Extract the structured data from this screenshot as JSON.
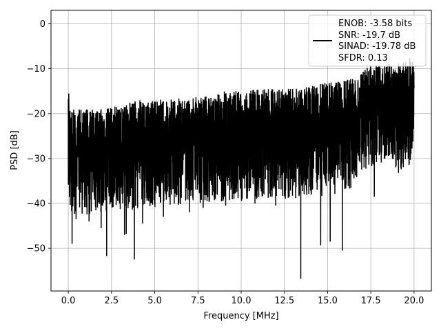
{
  "chart_data": {
    "type": "line",
    "xlabel": "Frequency [MHz]",
    "ylabel": "PSD [dB]",
    "xlim": [
      -1.0,
      21.0
    ],
    "ylim": [
      -59.5,
      3.0
    ],
    "grid": true,
    "legend_position": "upper-right",
    "x_ticks": [
      0.0,
      2.5,
      5.0,
      7.5,
      10.0,
      12.5,
      15.0,
      17.5,
      20.0
    ],
    "x_tick_labels": [
      "0.0",
      "2.5",
      "5.0",
      "7.5",
      "10.0",
      "12.5",
      "15.0",
      "17.5",
      "20.0"
    ],
    "y_ticks": [
      0,
      -10,
      -20,
      -30,
      -40,
      -50
    ],
    "y_tick_labels": [
      "0",
      "−10",
      "−20",
      "−30",
      "−40",
      "−50"
    ],
    "legend_lines": [
      "ENOB: -3.58 bits",
      "SNR: -19.7 dB",
      "SINAD: -19.78 dB",
      "SFDR: 0.13"
    ],
    "series": [
      {
        "color": "#000000",
        "x_range": [
          0.0,
          20.0
        ],
        "points": 8192,
        "envelope": {
          "x": [
            0.0,
            0.05,
            0.1,
            0.5,
            1.0,
            2.0,
            3.0,
            4.0,
            5.0,
            6.0,
            7.0,
            8.0,
            9.0,
            10.0,
            11.0,
            12.0,
            13.0,
            14.0,
            15.0,
            16.0,
            16.8,
            17.0,
            17.5,
            18.0,
            18.5,
            19.0,
            19.5,
            20.0
          ],
          "max": [
            -12.3,
            -17.5,
            -19.0,
            -19.0,
            -19.0,
            -19.0,
            -18.0,
            -17.0,
            -17.0,
            -16.5,
            -16.5,
            -16.0,
            -15.0,
            -15.0,
            -14.5,
            -14.5,
            -14.0,
            -14.0,
            -13.0,
            -12.5,
            -12.0,
            -10.5,
            -9.0,
            -9.0,
            -9.0,
            -9.0,
            -7.5,
            -7.5
          ],
          "mean": [
            -26.0,
            -27.0,
            -28.0,
            -28.5,
            -28.5,
            -28.0,
            -27.5,
            -27.5,
            -27.0,
            -26.5,
            -26.5,
            -26.0,
            -25.5,
            -25.5,
            -25.0,
            -25.0,
            -25.0,
            -24.5,
            -24.5,
            -23.5,
            -21.5,
            -18.5,
            -18.0,
            -18.0,
            -18.0,
            -18.5,
            -18.5,
            -19.0
          ],
          "min": [
            -36.0,
            -36.0,
            -49.0,
            -43.0,
            -45.0,
            -51.7,
            -47.0,
            -52.5,
            -44.0,
            -43.0,
            -42.0,
            -41.0,
            -41.0,
            -40.0,
            -40.0,
            -39.0,
            -56.8,
            -48.0,
            -49.0,
            -50.5,
            -40.0,
            -38.5,
            -35.0,
            -33.0,
            -33.0,
            -33.5,
            -32.0,
            -32.0
          ]
        },
        "deep_dips": [
          {
            "x": 0.22,
            "y": -49.0
          },
          {
            "x": 0.45,
            "y": -43.5
          },
          {
            "x": 1.2,
            "y": -44.0
          },
          {
            "x": 1.9,
            "y": -45.5
          },
          {
            "x": 2.22,
            "y": -51.7
          },
          {
            "x": 3.25,
            "y": -47.0
          },
          {
            "x": 3.35,
            "y": -46.8
          },
          {
            "x": 3.82,
            "y": -52.5
          },
          {
            "x": 4.3,
            "y": -44.5
          },
          {
            "x": 5.5,
            "y": -43.0
          },
          {
            "x": 7.0,
            "y": -42.0
          },
          {
            "x": 7.8,
            "y": -41.0
          },
          {
            "x": 9.1,
            "y": -40.5
          },
          {
            "x": 10.8,
            "y": -40.0
          },
          {
            "x": 12.0,
            "y": -40.5
          },
          {
            "x": 13.45,
            "y": -56.8
          },
          {
            "x": 14.6,
            "y": -49.3
          },
          {
            "x": 15.15,
            "y": -48.5
          },
          {
            "x": 15.85,
            "y": -50.5
          },
          {
            "x": 17.7,
            "y": -38.5
          },
          {
            "x": 19.1,
            "y": -33.2
          }
        ]
      }
    ]
  }
}
